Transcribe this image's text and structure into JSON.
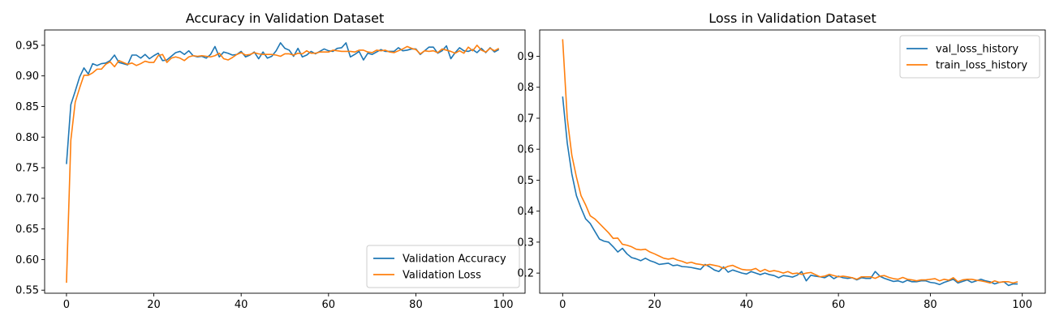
{
  "chart_data": [
    {
      "type": "line",
      "title": "Accuracy in Validation Dataset",
      "xlabel": "",
      "ylabel": "",
      "xlim": [
        -5,
        105
      ],
      "ylim": [
        0.545,
        0.975
      ],
      "xticks": [
        0,
        20,
        40,
        60,
        80,
        100
      ],
      "yticks": [
        0.55,
        0.6,
        0.65,
        0.7,
        0.75,
        0.8,
        0.85,
        0.9,
        0.95
      ],
      "ytick_labels": [
        "0.55",
        "0.60",
        "0.65",
        "0.70",
        "0.75",
        "0.80",
        "0.85",
        "0.90",
        "0.95"
      ],
      "grid": false,
      "legend_position": "lower-right",
      "series": [
        {
          "name": "Validation Accuracy",
          "color": "#1f77b4",
          "values": [
            0.756,
            0.853,
            0.875,
            0.898,
            0.913,
            0.903,
            0.92,
            0.917,
            0.92,
            0.921,
            0.925,
            0.934,
            0.922,
            0.92,
            0.918,
            0.934,
            0.934,
            0.929,
            0.935,
            0.928,
            0.933,
            0.937,
            0.925,
            0.926,
            0.932,
            0.938,
            0.94,
            0.935,
            0.941,
            0.933,
            0.931,
            0.932,
            0.929,
            0.935,
            0.948,
            0.931,
            0.939,
            0.937,
            0.934,
            0.935,
            0.94,
            0.931,
            0.934,
            0.939,
            0.928,
            0.939,
            0.929,
            0.932,
            0.941,
            0.954,
            0.945,
            0.942,
            0.932,
            0.945,
            0.931,
            0.934,
            0.94,
            0.936,
            0.94,
            0.944,
            0.941,
            0.94,
            0.945,
            0.946,
            0.954,
            0.931,
            0.935,
            0.94,
            0.926,
            0.937,
            0.935,
            0.939,
            0.943,
            0.94,
            0.94,
            0.94,
            0.946,
            0.941,
            0.942,
            0.944,
            0.944,
            0.935,
            0.941,
            0.947,
            0.947,
            0.937,
            0.941,
            0.949,
            0.928,
            0.938,
            0.946,
            0.941,
            0.94,
            0.943,
            0.938,
            0.945,
            0.938,
            0.946,
            0.939,
            0.943
          ]
        },
        {
          "name": "Validation Loss",
          "color": "#ff7f0e",
          "values": [
            0.562,
            0.795,
            0.857,
            0.88,
            0.901,
            0.901,
            0.905,
            0.911,
            0.911,
            0.919,
            0.923,
            0.915,
            0.925,
            0.922,
            0.919,
            0.921,
            0.917,
            0.92,
            0.924,
            0.922,
            0.922,
            0.933,
            0.935,
            0.922,
            0.929,
            0.931,
            0.929,
            0.925,
            0.931,
            0.933,
            0.932,
            0.933,
            0.932,
            0.931,
            0.933,
            0.937,
            0.928,
            0.926,
            0.93,
            0.935,
            0.938,
            0.934,
            0.935,
            0.938,
            0.936,
            0.935,
            0.935,
            0.935,
            0.934,
            0.932,
            0.936,
            0.936,
            0.934,
            0.937,
            0.936,
            0.941,
            0.937,
            0.937,
            0.939,
            0.939,
            0.939,
            0.942,
            0.941,
            0.94,
            0.94,
            0.94,
            0.939,
            0.942,
            0.942,
            0.939,
            0.938,
            0.942,
            0.941,
            0.942,
            0.939,
            0.938,
            0.941,
            0.944,
            0.948,
            0.945,
            0.943,
            0.936,
            0.941,
            0.94,
            0.941,
            0.938,
            0.944,
            0.942,
            0.94,
            0.937,
            0.941,
            0.937,
            0.947,
            0.941,
            0.95,
            0.942,
            0.939,
            0.945,
            0.941,
            0.945
          ]
        }
      ]
    },
    {
      "type": "line",
      "title": "Loss in Validation Dataset",
      "xlabel": "",
      "ylabel": "",
      "xlim": [
        -5,
        105
      ],
      "ylim": [
        0.135,
        0.985
      ],
      "xticks": [
        0,
        20,
        40,
        60,
        80,
        100
      ],
      "yticks": [
        0.2,
        0.3,
        0.4,
        0.5,
        0.6,
        0.7,
        0.8,
        0.9
      ],
      "ytick_labels": [
        "0.2",
        "0.3",
        "0.4",
        "0.5",
        "0.6",
        "0.7",
        "0.8",
        "0.9"
      ],
      "grid": false,
      "legend_position": "upper-right",
      "series": [
        {
          "name": "val_loss_history",
          "color": "#1f77b4",
          "values": [
            0.77,
            0.62,
            0.52,
            0.45,
            0.41,
            0.375,
            0.36,
            0.335,
            0.31,
            0.303,
            0.3,
            0.285,
            0.268,
            0.28,
            0.262,
            0.25,
            0.246,
            0.24,
            0.248,
            0.24,
            0.235,
            0.228,
            0.23,
            0.232,
            0.224,
            0.226,
            0.221,
            0.22,
            0.218,
            0.215,
            0.212,
            0.228,
            0.22,
            0.21,
            0.205,
            0.22,
            0.203,
            0.21,
            0.205,
            0.2,
            0.197,
            0.205,
            0.2,
            0.195,
            0.2,
            0.195,
            0.192,
            0.185,
            0.192,
            0.19,
            0.187,
            0.193,
            0.205,
            0.175,
            0.193,
            0.19,
            0.188,
            0.185,
            0.193,
            0.182,
            0.19,
            0.185,
            0.183,
            0.185,
            0.178,
            0.185,
            0.183,
            0.183,
            0.205,
            0.19,
            0.183,
            0.178,
            0.173,
            0.175,
            0.17,
            0.177,
            0.172,
            0.172,
            0.175,
            0.175,
            0.17,
            0.168,
            0.163,
            0.17,
            0.175,
            0.18,
            0.168,
            0.173,
            0.178,
            0.17,
            0.175,
            0.18,
            0.175,
            0.172,
            0.165,
            0.17,
            0.172,
            0.16,
            0.165,
            0.165
          ]
        },
        {
          "name": "train_loss_history",
          "color": "#ff7f0e",
          "values": [
            0.955,
            0.7,
            0.58,
            0.51,
            0.45,
            0.42,
            0.385,
            0.375,
            0.36,
            0.345,
            0.33,
            0.312,
            0.313,
            0.293,
            0.29,
            0.285,
            0.277,
            0.275,
            0.277,
            0.268,
            0.262,
            0.255,
            0.248,
            0.245,
            0.248,
            0.242,
            0.238,
            0.232,
            0.235,
            0.23,
            0.228,
            0.225,
            0.228,
            0.225,
            0.222,
            0.215,
            0.222,
            0.225,
            0.218,
            0.212,
            0.21,
            0.21,
            0.215,
            0.205,
            0.212,
            0.205,
            0.208,
            0.205,
            0.2,
            0.205,
            0.198,
            0.2,
            0.196,
            0.2,
            0.202,
            0.195,
            0.188,
            0.19,
            0.196,
            0.192,
            0.188,
            0.19,
            0.188,
            0.185,
            0.18,
            0.188,
            0.188,
            0.188,
            0.183,
            0.19,
            0.192,
            0.186,
            0.182,
            0.18,
            0.186,
            0.18,
            0.178,
            0.175,
            0.178,
            0.178,
            0.18,
            0.182,
            0.175,
            0.18,
            0.177,
            0.185,
            0.172,
            0.178,
            0.18,
            0.18,
            0.177,
            0.175,
            0.172,
            0.168,
            0.175,
            0.17,
            0.172,
            0.172,
            0.168,
            0.172
          ]
        }
      ]
    }
  ]
}
